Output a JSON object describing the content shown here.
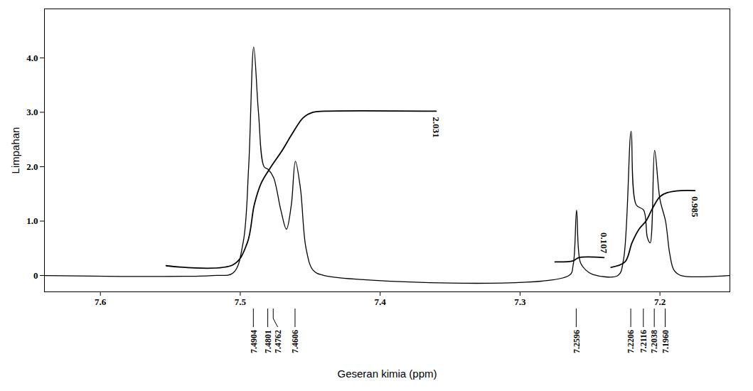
{
  "chart_data": {
    "type": "line",
    "x_label": "Geseran kimia (ppm)",
    "y_label": "Limpahan",
    "xlim": [
      7.64,
      7.15
    ],
    "xticks": [
      7.6,
      7.5,
      7.4,
      7.3,
      7.2
    ],
    "ylim": [
      -0.3,
      4.9
    ],
    "yticks": [
      0,
      {
        "value": 1,
        "label": "1.0"
      },
      {
        "value": 2,
        "label": "2.0"
      },
      {
        "value": 3,
        "label": "3.0"
      },
      {
        "value": 4,
        "label": "4.0"
      }
    ],
    "color": "#000000",
    "x": [
      7.64,
      7.52,
      7.505,
      7.498,
      7.494,
      7.4904,
      7.487,
      7.483,
      7.4801,
      7.4762,
      7.471,
      7.467,
      7.4635,
      7.4606,
      7.457,
      7.453,
      7.448,
      7.44,
      7.265,
      7.262,
      7.2596,
      7.257,
      7.253,
      7.248,
      7.23,
      7.226,
      7.2206,
      7.217,
      7.2116,
      7.209,
      7.207,
      7.2038,
      7.2,
      7.196,
      7.193,
      7.19,
      7.185,
      7.15
    ],
    "values": [
      0,
      0,
      0.05,
      0.6,
      2.0,
      4.2,
      3.0,
      2.0,
      1.95,
      1.8,
      1.2,
      0.85,
      1.3,
      2.1,
      1.6,
      0.5,
      0.1,
      0,
      0,
      0.2,
      1.2,
      0.25,
      0.1,
      0.02,
      0,
      0.3,
      2.65,
      1.3,
      1.2,
      0.7,
      0.6,
      2.3,
      1.4,
      1.0,
      0.4,
      0.1,
      0,
      0
    ],
    "peaks": [
      {
        "value": 7.4904,
        "label": "7.4904"
      },
      {
        "value": 7.4801,
        "label": "7.4801"
      },
      {
        "value": 7.4762,
        "label": "7.4762"
      },
      {
        "value": 7.4606,
        "label": "7.4606"
      },
      {
        "value": 7.2596,
        "label": "7.2596"
      },
      {
        "value": 7.2206,
        "label": "7.2206"
      },
      {
        "value": 7.2116,
        "label": "7.2116"
      },
      {
        "value": 7.2038,
        "label": "7.2038"
      },
      {
        "value": 7.196,
        "label": "7.1960"
      }
    ],
    "integrals": [
      {
        "label": "2.031",
        "x": [
          7.553,
          7.505,
          7.495,
          7.49,
          7.485,
          7.478,
          7.47,
          7.463,
          7.455,
          7.448,
          7.44,
          7.36
        ],
        "values": [
          0.18,
          0.2,
          0.6,
          1.3,
          1.7,
          2.0,
          2.3,
          2.6,
          2.9,
          3.0,
          3.02,
          3.02
        ]
      },
      {
        "label": "0.107",
        "x": [
          7.275,
          7.262,
          7.258,
          7.24
        ],
        "values": [
          0.25,
          0.27,
          0.33,
          0.33
        ]
      },
      {
        "label": "0.985",
        "x": [
          7.235,
          7.225,
          7.22,
          7.215,
          7.21,
          7.205,
          7.2,
          7.195,
          7.185,
          7.175
        ],
        "values": [
          0.15,
          0.25,
          0.6,
          0.85,
          1.0,
          1.25,
          1.45,
          1.52,
          1.56,
          1.56
        ]
      }
    ]
  }
}
